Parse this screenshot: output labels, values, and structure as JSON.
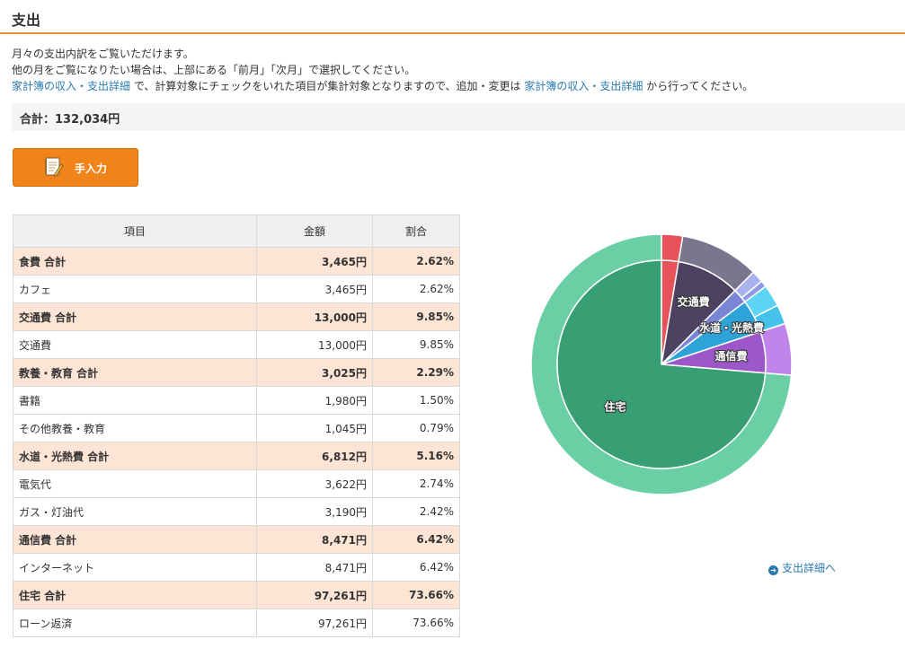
{
  "page": {
    "title": "支出"
  },
  "description": {
    "line1": "月々の支出内訳をご覧いただけます。",
    "line2": "他の月をご覧になりたい場合は、上部にある「前月」「次月」で選択してください。",
    "line3_link1": "家計簿の収入・支出詳細",
    "line3_mid": " で、計算対象にチェックをいれた項目が集計対象となりますので、追加・変更は ",
    "line3_link2": "家計簿の収入・支出詳細",
    "line3_end": " から行ってください。"
  },
  "total": {
    "label": "合計：132,034円"
  },
  "manual_button": {
    "label": "手入力",
    "icon": "notebook-pencil-icon"
  },
  "table": {
    "headers": [
      "項目",
      "金額",
      "割合"
    ],
    "rows": [
      {
        "kind": "group",
        "name": "食費 合計",
        "amount": "3,465円",
        "ratio": "2.62%"
      },
      {
        "kind": "item",
        "name": "カフェ",
        "amount": "3,465円",
        "ratio": "2.62%"
      },
      {
        "kind": "group",
        "name": "交通費 合計",
        "amount": "13,000円",
        "ratio": "9.85%"
      },
      {
        "kind": "item",
        "name": "交通費",
        "amount": "13,000円",
        "ratio": "9.85%"
      },
      {
        "kind": "group",
        "name": "教養・教育 合計",
        "amount": "3,025円",
        "ratio": "2.29%"
      },
      {
        "kind": "item",
        "name": "書籍",
        "amount": "1,980円",
        "ratio": "1.50%"
      },
      {
        "kind": "item",
        "name": "その他教養・教育",
        "amount": "1,045円",
        "ratio": "0.79%"
      },
      {
        "kind": "group",
        "name": "水道・光熱費 合計",
        "amount": "6,812円",
        "ratio": "5.16%"
      },
      {
        "kind": "item",
        "name": "電気代",
        "amount": "3,622円",
        "ratio": "2.74%"
      },
      {
        "kind": "item",
        "name": "ガス・灯油代",
        "amount": "3,190円",
        "ratio": "2.42%"
      },
      {
        "kind": "group",
        "name": "通信費 合計",
        "amount": "8,471円",
        "ratio": "6.42%"
      },
      {
        "kind": "item",
        "name": "インターネット",
        "amount": "8,471円",
        "ratio": "6.42%"
      },
      {
        "kind": "group",
        "name": "住宅 合計",
        "amount": "97,261円",
        "ratio": "73.66%"
      },
      {
        "kind": "item",
        "name": "ローン返済",
        "amount": "97,261円",
        "ratio": "73.66%"
      }
    ]
  },
  "chart_data": {
    "type": "pie",
    "inner": [
      {
        "label": "",
        "value": 3465,
        "color": "#e8535a"
      },
      {
        "label": "交通費",
        "value": 13000,
        "color": "#4d4360"
      },
      {
        "label": "",
        "value": 3025,
        "color": "#7b85d8"
      },
      {
        "label": "水道・光熱費",
        "value": 6812,
        "color": "#2ea3d8"
      },
      {
        "label": "通信費",
        "value": 8471,
        "color": "#9c58c8"
      },
      {
        "label": "住宅",
        "value": 97261,
        "color": "#389e74"
      }
    ],
    "outer": [
      {
        "value": 3465,
        "color": "#e8535a"
      },
      {
        "value": 13000,
        "color": "#7b768e"
      },
      {
        "value": 1980,
        "color": "#a9b1ef"
      },
      {
        "value": 1045,
        "color": "#8f98e3"
      },
      {
        "value": 3622,
        "color": "#5dd4f3"
      },
      {
        "value": 3190,
        "color": "#45c2ec"
      },
      {
        "value": 8471,
        "color": "#c084ea"
      },
      {
        "value": 97261,
        "color": "#6bcfa6"
      }
    ]
  },
  "detail_link": {
    "label": "支出詳細へ"
  }
}
